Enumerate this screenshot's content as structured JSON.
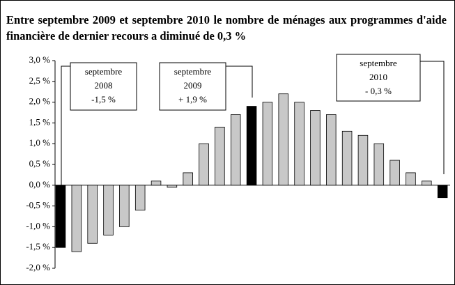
{
  "chart_data": {
    "type": "bar",
    "title": "Entre septembre 2009 et septembre 2010 le nombre de ménages aux programmes d'aide financière de dernier recours a diminué de 0,3 %",
    "categories": [
      null,
      null,
      null,
      null,
      null,
      null,
      null,
      null,
      null,
      null,
      null,
      null,
      null,
      null,
      null,
      null,
      null,
      null,
      null,
      null,
      null,
      null,
      null,
      null,
      null
    ],
    "values": [
      -1.5,
      -1.6,
      -1.4,
      -1.2,
      -1.0,
      -0.6,
      0.1,
      -0.05,
      0.3,
      1.0,
      1.4,
      1.7,
      1.9,
      2.0,
      2.2,
      2.0,
      1.8,
      1.7,
      1.3,
      1.2,
      1.0,
      0.6,
      0.3,
      0.1,
      -0.3
    ],
    "colors": [
      "#000000",
      "#c8c8c8",
      "#c8c8c8",
      "#c8c8c8",
      "#c8c8c8",
      "#c8c8c8",
      "#c8c8c8",
      "#c8c8c8",
      "#c8c8c8",
      "#c8c8c8",
      "#c8c8c8",
      "#c8c8c8",
      "#000000",
      "#c8c8c8",
      "#c8c8c8",
      "#c8c8c8",
      "#c8c8c8",
      "#c8c8c8",
      "#c8c8c8",
      "#c8c8c8",
      "#c8c8c8",
      "#c8c8c8",
      "#c8c8c8",
      "#c8c8c8",
      "#000000"
    ],
    "ylim": [
      -2.0,
      3.0
    ],
    "yticks": [
      {
        "value": -2.0,
        "label": "-2,0 %"
      },
      {
        "value": -1.5,
        "label": "-1,5 %"
      },
      {
        "value": -1.0,
        "label": "-1,0 %"
      },
      {
        "value": -0.5,
        "label": "-0,5 %"
      },
      {
        "value": 0,
        "label": "0,0 %"
      },
      {
        "value": 0.5,
        "label": "0,5 %"
      },
      {
        "value": 1.0,
        "label": "1,0 %"
      },
      {
        "value": 1.5,
        "label": "1,5 %"
      },
      {
        "value": 2.0,
        "label": "2,0 %"
      },
      {
        "value": 2.5,
        "label": "2,5 %"
      },
      {
        "value": 3.0,
        "label": "3,0 %"
      }
    ],
    "annotations": [
      {
        "lines": [
          "septembre",
          "2008",
          "-1,5 %"
        ]
      },
      {
        "lines": [
          "septembre",
          "2009",
          "+ 1,9 %"
        ]
      },
      {
        "lines": [
          "septembre",
          "2010",
          "- 0,3 %"
        ]
      }
    ]
  }
}
